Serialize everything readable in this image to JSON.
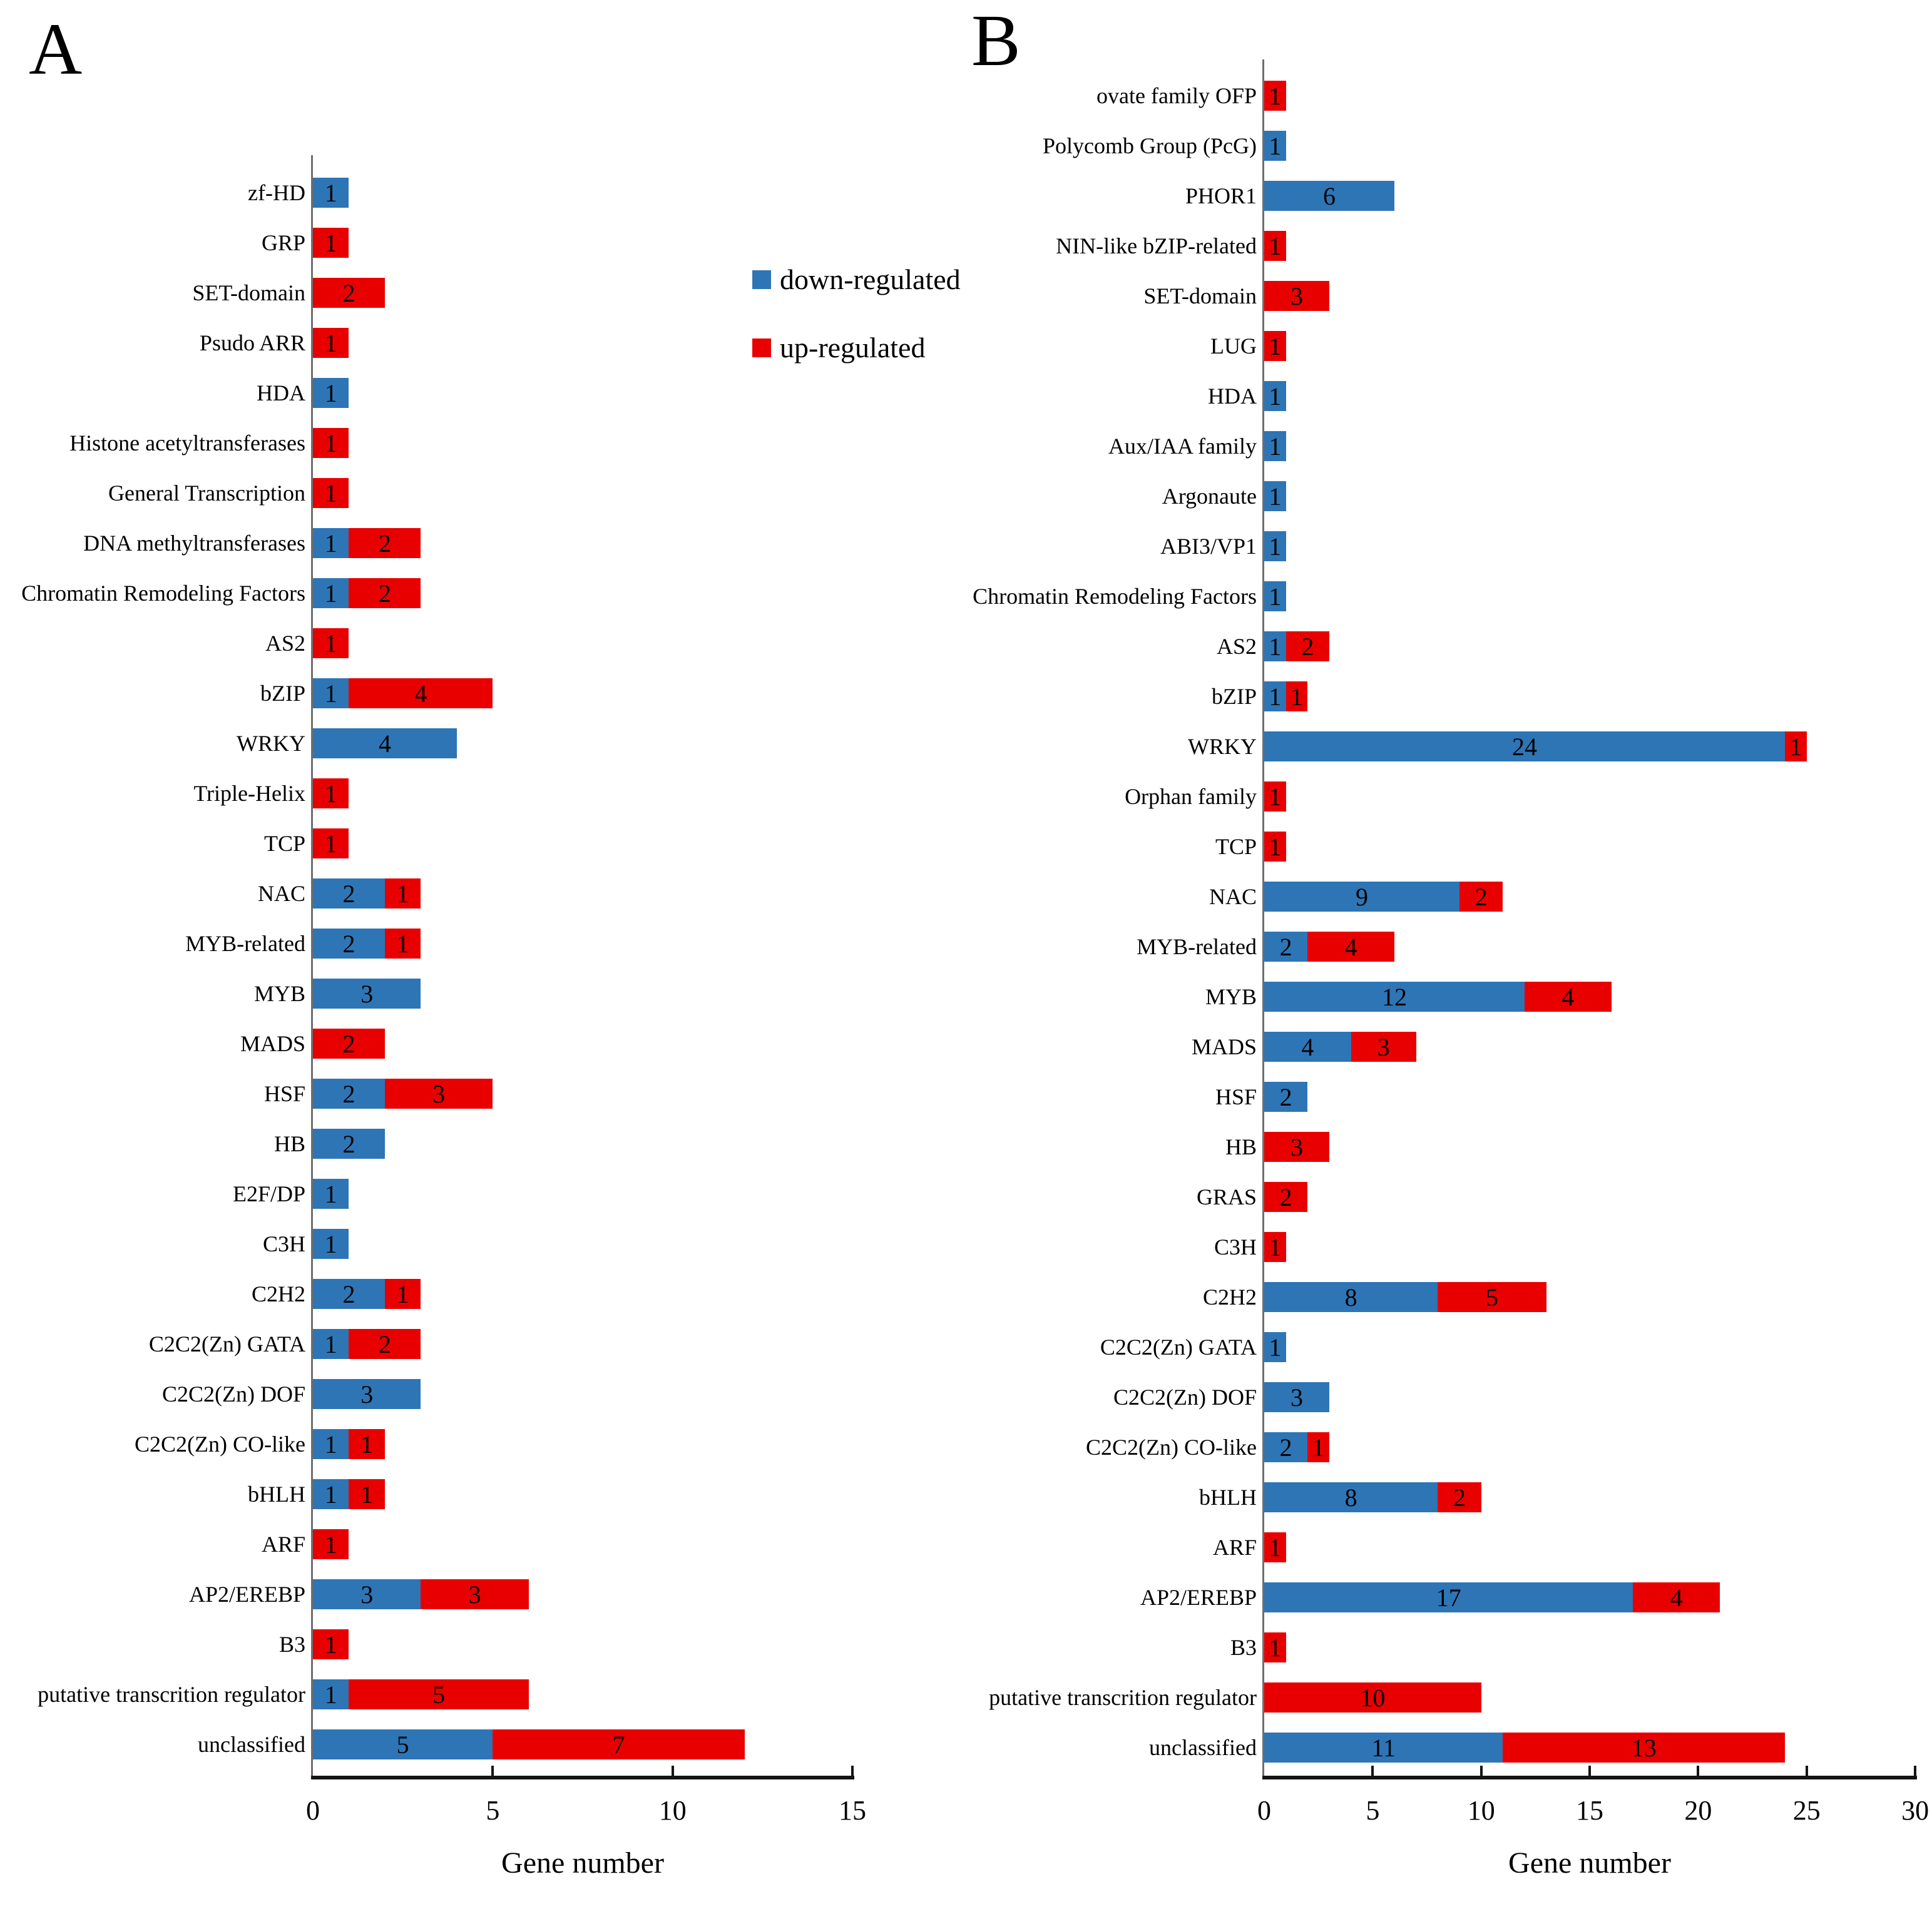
{
  "figure": {
    "panel_a_letter": "A",
    "panel_b_letter": "B"
  },
  "legend": {
    "items": [
      {
        "label": "down-regulated",
        "color": "#2E75B6"
      },
      {
        "label": "up-regulated",
        "color": "#E80000"
      }
    ]
  },
  "chart_data": [
    {
      "id": "A",
      "type": "bar",
      "orientation": "horizontal",
      "stacked": true,
      "panel_label": "A",
      "xlabel": "Gene number",
      "xlim": [
        0,
        15
      ],
      "x_ticks": [
        0,
        5,
        10,
        15
      ],
      "grid": false,
      "legend_position": "right-of-panel-A-top",
      "categories": [
        "zf-HD",
        "GRP",
        "SET-domain",
        "Psudo ARR",
        "HDA",
        "Histone acetyltransferases",
        "General Transcription",
        "DNA methyltransferases",
        "Chromatin Remodeling Factors",
        "AS2",
        "bZIP",
        "WRKY",
        "Triple-Helix",
        "TCP",
        "NAC",
        "MYB-related",
        "MYB",
        "MADS",
        "HSF",
        "HB",
        "E2F/DP",
        "C3H",
        "C2H2",
        "C2C2(Zn) GATA",
        "C2C2(Zn) DOF",
        "C2C2(Zn) CO-like",
        "bHLH",
        "ARF",
        "AP2/EREBP",
        "B3",
        "putative transcrition regulator",
        "unclassified"
      ],
      "series": [
        {
          "name": "down-regulated",
          "color": "#2E75B6",
          "values": [
            1,
            0,
            0,
            0,
            1,
            0,
            0,
            1,
            1,
            0,
            1,
            4,
            0,
            0,
            2,
            2,
            3,
            0,
            2,
            2,
            1,
            1,
            2,
            1,
            3,
            1,
            1,
            0,
            3,
            0,
            1,
            5
          ]
        },
        {
          "name": "up-regulated",
          "color": "#E80000",
          "values": [
            0,
            1,
            2,
            1,
            0,
            1,
            1,
            2,
            2,
            1,
            4,
            0,
            1,
            1,
            1,
            1,
            0,
            2,
            3,
            0,
            0,
            0,
            1,
            2,
            0,
            1,
            1,
            1,
            3,
            1,
            5,
            7
          ]
        }
      ]
    },
    {
      "id": "B",
      "type": "bar",
      "orientation": "horizontal",
      "stacked": true,
      "panel_label": "B",
      "xlabel": "Gene number",
      "xlim": [
        0,
        30
      ],
      "x_ticks": [
        0,
        5,
        10,
        15,
        20,
        25,
        30
      ],
      "grid": false,
      "legend_position": "shared-with-panel-A",
      "categories": [
        "ovate family OFP",
        "Polycomb Group (PcG)",
        "PHOR1",
        "NIN-like bZIP-related",
        "SET-domain",
        "LUG",
        "HDA",
        "Aux/IAA family",
        "Argonaute",
        "ABI3/VP1",
        "Chromatin Remodeling Factors",
        "AS2",
        "bZIP",
        "WRKY",
        "Orphan family",
        "TCP",
        "NAC",
        "MYB-related",
        "MYB",
        "MADS",
        "HSF",
        "HB",
        "GRAS",
        "C3H",
        "C2H2",
        "C2C2(Zn) GATA",
        "C2C2(Zn) DOF",
        "C2C2(Zn) CO-like",
        "bHLH",
        "ARF",
        "AP2/EREBP",
        "B3",
        "putative transcrition regulator",
        "unclassified"
      ],
      "series": [
        {
          "name": "down-regulated",
          "color": "#2E75B6",
          "values": [
            0,
            1,
            6,
            0,
            0,
            0,
            1,
            1,
            1,
            1,
            1,
            1,
            1,
            24,
            0,
            0,
            9,
            2,
            12,
            4,
            2,
            0,
            0,
            0,
            8,
            1,
            3,
            2,
            8,
            0,
            17,
            0,
            0,
            11
          ]
        },
        {
          "name": "up-regulated",
          "color": "#E80000",
          "values": [
            1,
            0,
            0,
            1,
            3,
            1,
            0,
            0,
            0,
            0,
            0,
            2,
            1,
            1,
            1,
            1,
            2,
            4,
            4,
            3,
            0,
            3,
            2,
            1,
            5,
            0,
            0,
            1,
            2,
            1,
            4,
            1,
            10,
            13
          ]
        }
      ]
    }
  ]
}
